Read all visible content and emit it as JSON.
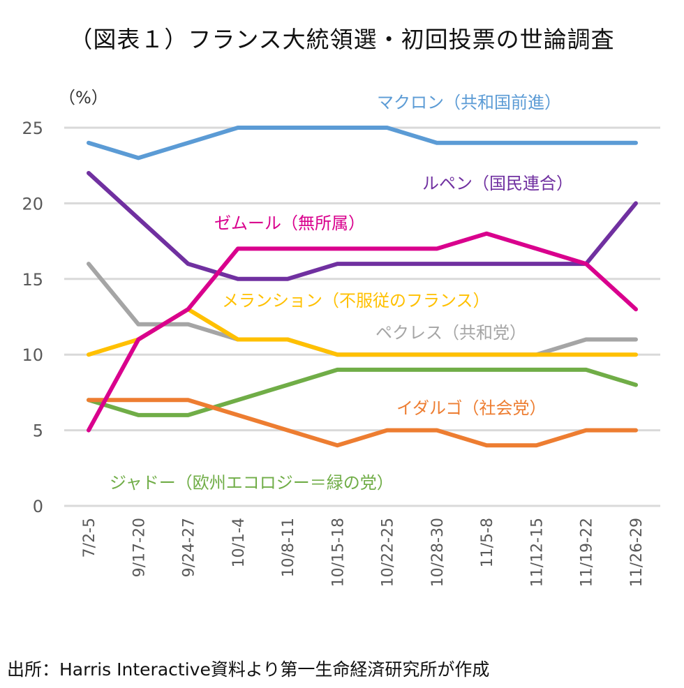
{
  "chart_data": {
    "type": "line",
    "title": "（図表１）フランス大統領選・初回投票の世論調査",
    "ylabel": "（%）",
    "ylim": [
      0,
      25
    ],
    "yticks": [
      0,
      5,
      10,
      15,
      20,
      25
    ],
    "grid": true,
    "categories": [
      "7/2-5",
      "9/17-20",
      "9/24-27",
      "10/1-4",
      "10/8-11",
      "10/15-18",
      "10/22-25",
      "10/28-30",
      "11/5-8",
      "11/12-15",
      "11/19-22",
      "11/26-29"
    ],
    "series": [
      {
        "name": "マクロン（共和国前進）",
        "color": "#5B9BD5",
        "values": [
          24,
          23,
          24,
          25,
          25,
          25,
          25,
          24,
          24,
          24,
          24,
          24
        ]
      },
      {
        "name": "ルペン（国民連合）",
        "color": "#7030A0",
        "values": [
          22,
          19,
          16,
          15,
          15,
          16,
          16,
          16,
          16,
          16,
          16,
          20
        ]
      },
      {
        "name": "ゼムール（無所属）",
        "color": "#D9008D",
        "values": [
          5,
          11,
          13,
          17,
          17,
          17,
          17,
          17,
          18,
          17,
          16,
          13
        ]
      },
      {
        "name": "ペクレス（共和党）",
        "color": "#A5A5A5",
        "values": [
          16,
          12,
          12,
          11,
          11,
          10,
          10,
          10,
          10,
          10,
          11,
          11
        ]
      },
      {
        "name": "メランション（不服従のフランス）",
        "color": "#FFC000",
        "values": [
          10,
          11,
          13,
          11,
          11,
          10,
          10,
          10,
          10,
          10,
          10,
          10
        ]
      },
      {
        "name": "ジャドー（欧州エコロジー＝緑の党）",
        "color": "#70AD47",
        "values": [
          7,
          6,
          6,
          7,
          8,
          9,
          9,
          9,
          9,
          9,
          9,
          8
        ]
      },
      {
        "name": "イダルゴ（社会党）",
        "color": "#ED7D31",
        "values": [
          7,
          7,
          7,
          6,
          5,
          4,
          5,
          5,
          4,
          4,
          5,
          5
        ]
      }
    ],
    "source": "出所：Harris Interactive資料より第一生命経済研究所が作成"
  }
}
